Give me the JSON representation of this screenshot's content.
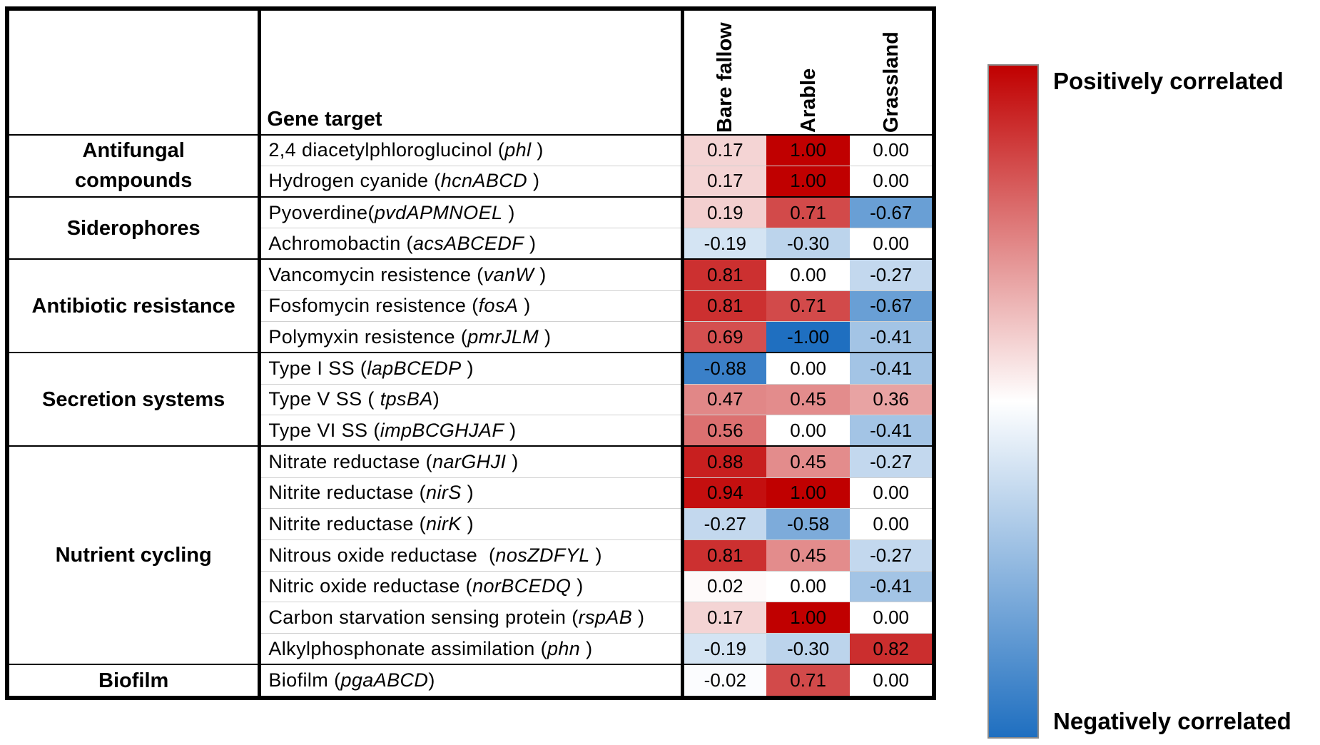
{
  "chart_data": {
    "type": "heatmap",
    "header": {
      "gene_target_label": "Gene target"
    },
    "columns": [
      "Bare fallow",
      "Arable",
      "Grassland"
    ],
    "groups": [
      {
        "category_lines": [
          "Antifungal",
          "compounds"
        ],
        "rows": [
          {
            "name": "2,4 diacetylphloroglucinol (",
            "gene": "phl",
            "tail": " )",
            "values": [
              0.17,
              1.0,
              0.0
            ]
          },
          {
            "name": "Hydrogen cyanide (",
            "gene": "hcnABCD",
            "tail": " )",
            "values": [
              0.17,
              1.0,
              0.0
            ]
          }
        ]
      },
      {
        "category_lines": [
          "Siderophores"
        ],
        "rows": [
          {
            "name": "Pyoverdine(",
            "gene": "pvdAPMNOEL",
            "tail": " )",
            "values": [
              0.19,
              0.71,
              -0.67
            ]
          },
          {
            "name": "Achromobactin (",
            "gene": "acsABCEDF",
            "tail": " )",
            "values": [
              -0.19,
              -0.3,
              0.0
            ]
          }
        ]
      },
      {
        "category_lines": [
          "Antibiotic resistance"
        ],
        "rows": [
          {
            "name": "Vancomycin resistence (",
            "gene": "vanW",
            "tail": " )",
            "values": [
              0.81,
              0.0,
              -0.27
            ]
          },
          {
            "name": "Fosfomycin resistence (",
            "gene": "fosA",
            "tail": " )",
            "values": [
              0.81,
              0.71,
              -0.67
            ]
          },
          {
            "name": "Polymyxin resistence (",
            "gene": "pmrJLM",
            "tail": " )",
            "values": [
              0.69,
              -1.0,
              -0.41
            ]
          }
        ]
      },
      {
        "category_lines": [
          "Secretion systems"
        ],
        "rows": [
          {
            "name": "Type I SS (",
            "gene": "lapBCEDP",
            "tail": " )",
            "values": [
              -0.88,
              0.0,
              -0.41
            ]
          },
          {
            "name": "Type V SS ( ",
            "gene": "tpsBA",
            "tail": ")",
            "values": [
              0.47,
              0.45,
              0.36
            ]
          },
          {
            "name": "Type VI SS (",
            "gene": "impBCGHJAF",
            "tail": " )",
            "values": [
              0.56,
              0.0,
              -0.41
            ]
          }
        ]
      },
      {
        "category_lines": [
          "Nutrient cycling"
        ],
        "rows": [
          {
            "name": "Nitrate reductase (",
            "gene": "narGHJI",
            "tail": " )",
            "values": [
              0.88,
              0.45,
              -0.27
            ]
          },
          {
            "name": "Nitrite reductase (",
            "gene": "nirS",
            "tail": " )",
            "values": [
              0.94,
              1.0,
              0.0
            ]
          },
          {
            "name": "Nitrite reductase (",
            "gene": "nirK",
            "tail": " )",
            "values": [
              -0.27,
              -0.58,
              0.0
            ]
          },
          {
            "name": "Nitrous oxide reductase  (",
            "gene": "nosZDFYL",
            "tail": " )",
            "values": [
              0.81,
              0.45,
              -0.27
            ]
          },
          {
            "name": "Nitric oxide reductase (",
            "gene": "norBCEDQ",
            "tail": " )",
            "values": [
              0.02,
              0.0,
              -0.41
            ]
          },
          {
            "name": "Carbon starvation sensing protein (",
            "gene": "rspAB",
            "tail": " )",
            "values": [
              0.17,
              1.0,
              0.0
            ]
          },
          {
            "name": "Alkylphosphonate assimilation (",
            "gene": "phn",
            "tail": " )",
            "values": [
              -0.19,
              -0.3,
              0.82
            ]
          }
        ]
      },
      {
        "category_lines": [
          "Biofilm"
        ],
        "rows": [
          {
            "name": "Biofilm (",
            "gene": "pgaABCD",
            "tail": ")",
            "values": [
              -0.02,
              0.71,
              0.0
            ]
          }
        ]
      }
    ],
    "color_scale": {
      "min": -1,
      "max": 1,
      "low_color": "#1f6fc0",
      "mid_color": "#ffffff",
      "high_color": "#c00000"
    },
    "legend": {
      "top_label": "Positively correlated",
      "bottom_label": "Negatively correlated"
    }
  }
}
